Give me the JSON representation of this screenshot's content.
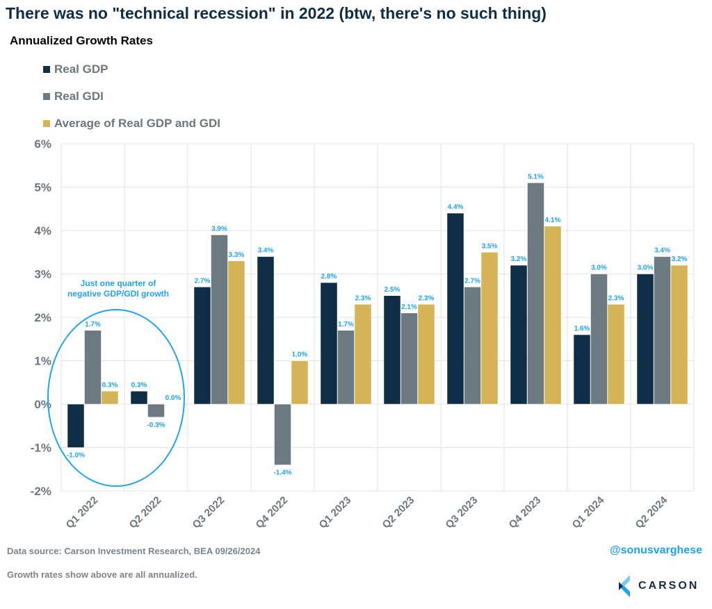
{
  "title": "There was no \"technical recession\" in 2022 (btw, there's no such thing)",
  "subtitle": "Annualized Growth Rates",
  "footer": {
    "source": "Data source: Carson Investment Research, BEA   09/26/2024",
    "note": "Growth rates show above are all annualized.",
    "handle": "@sonusvarghese",
    "logo_text": "CARSON"
  },
  "chart_data": {
    "type": "bar",
    "title": "",
    "categories": [
      "Q1 2022",
      "Q2 2022",
      "Q3 2022",
      "Q4 2022",
      "Q1 2023",
      "Q2 2023",
      "Q3 2023",
      "Q4 2023",
      "Q1 2024",
      "Q2 2024"
    ],
    "series": [
      {
        "name": "Real GDP",
        "color": "#0f2d45",
        "values": [
          -1.0,
          0.3,
          2.7,
          3.4,
          2.8,
          2.5,
          4.4,
          3.2,
          1.6,
          3.0
        ]
      },
      {
        "name": "Real GDI",
        "color": "#6d7a82",
        "values": [
          1.7,
          -0.3,
          3.9,
          -1.4,
          1.7,
          2.1,
          2.7,
          5.1,
          3.0,
          3.4
        ]
      },
      {
        "name": "Average of Real GDP and GDI",
        "color": "#d4b456",
        "values": [
          0.3,
          0.0,
          3.3,
          1.0,
          2.3,
          2.3,
          3.5,
          4.1,
          2.3,
          3.2
        ]
      }
    ],
    "ylim": [
      -2,
      6
    ],
    "yticks": [
      "-2%",
      "-1%",
      "0%",
      "1%",
      "2%",
      "3%",
      "4%",
      "5%",
      "6%"
    ],
    "grid": true,
    "legend": "top-left",
    "data_label_color": "#1fa3f0",
    "annotation": {
      "text_lines": [
        "Just one quarter of",
        "negative GDP/GDI growth"
      ],
      "color": "#1fa3f0",
      "circled_categories": [
        "Q1 2022",
        "Q2 2022"
      ]
    }
  }
}
